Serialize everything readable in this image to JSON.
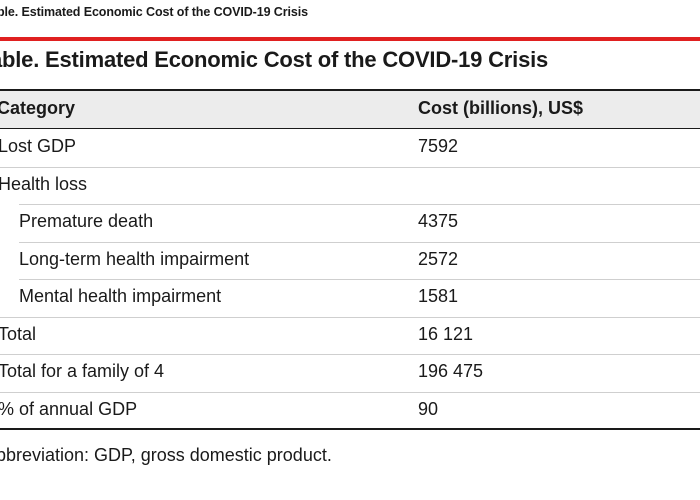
{
  "caption": "ble.  Estimated Economic Cost of the COVID-19 Crisis",
  "table": {
    "title": "able. Estimated Economic Cost of the COVID-19 Crisis",
    "columns": [
      "Category",
      "Cost (billions), US$"
    ],
    "rows": [
      {
        "label": "Lost GDP",
        "value": "7592",
        "indent": 0
      },
      {
        "label": "Health loss",
        "value": "",
        "indent": 0
      },
      {
        "label": "Premature death",
        "value": "4375",
        "indent": 1
      },
      {
        "label": "Long-term health impairment",
        "value": "2572",
        "indent": 1
      },
      {
        "label": "Mental health impairment",
        "value": "1581",
        "indent": 1
      },
      {
        "label": "Total",
        "value": "16 121",
        "indent": 0
      },
      {
        "label": "Total for a family of 4",
        "value": "196 475",
        "indent": 0
      },
      {
        "label": "% of annual GDP",
        "value": "90",
        "indent": 0
      }
    ]
  },
  "footnote": "bbreviation: GDP, gross domestic product.",
  "colors": {
    "accent_rule": "#e02020",
    "header_bg": "#ececec",
    "row_divider": "#cfcfcf"
  }
}
